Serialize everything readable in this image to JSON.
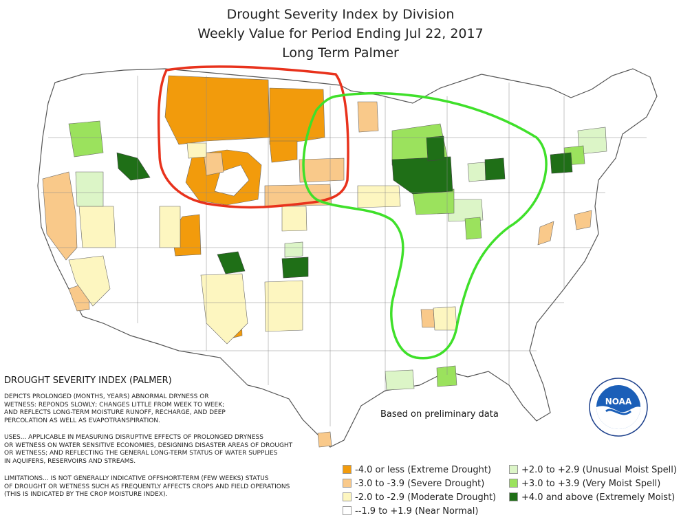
{
  "title": {
    "line1": "Drought Severity Index by Division",
    "line2": "Weekly Value for Period Ending Jul 22, 2017",
    "line3": "Long Term Palmer"
  },
  "description": {
    "heading": "DROUGHT SEVERITY INDEX (PALMER)",
    "para1": [
      "DEPICTS PROLONGED (MONTHS, YEARS) ABNORMAL DRYNESS OR",
      "WETNESS: REPONDS SLOWLY; CHANGES LITTLE FROM WEEK TO WEEK;",
      "AND REFLECTS LONG-TERM MOISTURE RUNOFF, RECHARGE, AND DEEP",
      "PERCOLATION AS WELL AS EVAPOTRANSPIRATION."
    ],
    "para2": [
      "USES... APPLICABLE IN MEASURING DISRUPTIVE EFFECTS OF PROLONGED DRYNESS",
      "OR WETNESS ON WATER SENSITIVE ECONOMIES, DESIGNING DISASTER AREAS OF DROUGHT",
      "OR WETNESS; AND REFLECTING THE GENERAL LONG-TERM STATUS OF WATER SUPPLIES",
      "IN AQUIFERS, RESERVOIRS AND STREAMS."
    ],
    "para3": [
      "LIMITATIONS... IS NOT GENERALLY INDICATIVE OFFSHORT-TERM (FEW WEEKS) STATUS",
      "OF DROUGHT OR WETNESS SUCH AS FREQUENTLY AFFECTS CROPS AND FIELD OPERATIONS",
      "(THIS IS INDICATED BY THE CROP MOISTURE INDEX)."
    ]
  },
  "note": "Based on preliminary data",
  "legend": [
    {
      "label": "-4.0 or less (Extreme Drought)",
      "color": "#f29b0c"
    },
    {
      "label": "-3.0 to -3.9 (Severe Drought)",
      "color": "#f9c98a"
    },
    {
      "label": "-2.0 to -2.9 (Moderate Drought)",
      "color": "#fdf6c0"
    },
    {
      "label": "--1.9 to +1.9 (Near Normal)",
      "color": "#ffffff"
    },
    {
      "label": "+2.0 to +2.9 (Unusual Moist Spell)",
      "color": "#dcf5c7"
    },
    {
      "label": "+3.0 to +3.9 (Very Moist Spell)",
      "color": "#9be25d"
    },
    {
      "label": "+4.0 and above (Extremely Moist)",
      "color": "#1f6f17"
    }
  ],
  "annotation_colors": {
    "red_outline": "#e8321c",
    "green_outline": "#3fe02a"
  },
  "logo": {
    "text": "NOAA",
    "ring_text": "NATIONAL OCEANIC AND ATMOSPHERIC ADMINISTRATION · U.S. DEPARTMENT OF COMMERCE"
  }
}
